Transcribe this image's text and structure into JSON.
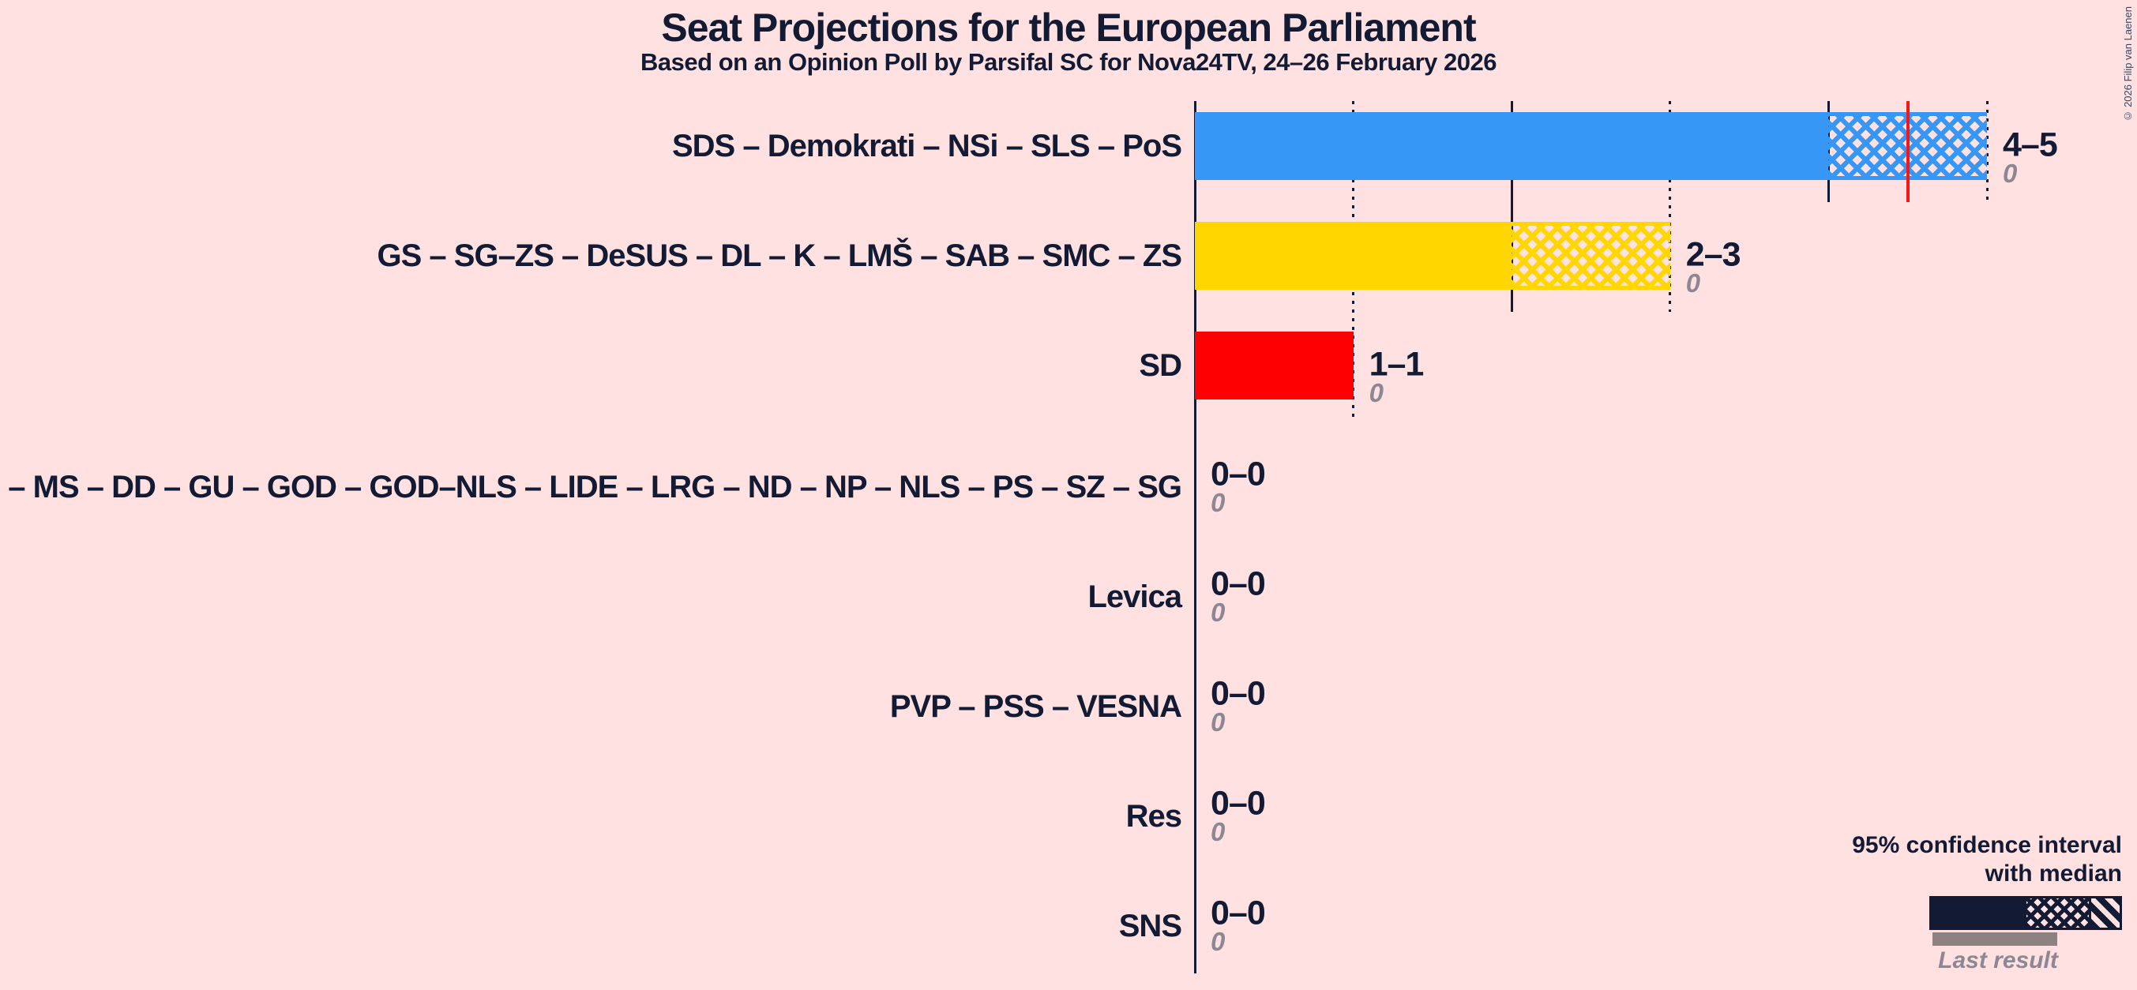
{
  "chart_data": {
    "type": "bar",
    "title": "Seat Projections for the European Parliament",
    "subtitle": "Based on an Opinion Poll by Parsifal SC for Nova24TV, 24–26 February 2026",
    "unit": "seats",
    "x_axis": {
      "min": 0,
      "max": 5,
      "solid_gridlines": [
        2,
        4
      ],
      "dotted_gridlines": [
        1,
        3,
        5
      ]
    },
    "axis_color": "#121b33",
    "parties": [
      {
        "name": "SDS – Demokrati – NSi – SLS – PoS",
        "ci_label": "4–5",
        "low": 4,
        "high": 5,
        "median": 4.5,
        "last_result": "0",
        "color": "#3797f7"
      },
      {
        "name": "GS – SG–ZS – DeSUS – DL – K – LMŠ – SAB – SMC – ZS",
        "ci_label": "2–3",
        "low": 2,
        "high": 3,
        "median": null,
        "last_result": "0",
        "color": "#ffd600"
      },
      {
        "name": "SD",
        "ci_label": "1–1",
        "low": 1,
        "high": 1,
        "median": null,
        "last_result": "0",
        "color": "#fe0000"
      },
      {
        "name": "Fokus – MS – DD – GU – GOD – GOD–NLS – LIDE – LRG – ND – NP – NLS – PS – SZ – SG",
        "ci_label": "0–0",
        "low": 0,
        "high": 0,
        "median": null,
        "last_result": "0",
        "color": null
      },
      {
        "name": "Levica",
        "ci_label": "0–0",
        "low": 0,
        "high": 0,
        "median": null,
        "last_result": "0",
        "color": null
      },
      {
        "name": "PVP – PSS – VESNA",
        "ci_label": "0–0",
        "low": 0,
        "high": 0,
        "median": null,
        "last_result": "0",
        "color": null
      },
      {
        "name": "Res",
        "ci_label": "0–0",
        "low": 0,
        "high": 0,
        "median": null,
        "last_result": "0",
        "color": null
      },
      {
        "name": "SNS",
        "ci_label": "0–0",
        "low": 0,
        "high": 0,
        "median": null,
        "last_result": "0",
        "color": null
      }
    ]
  },
  "legend": {
    "line1": "95% confidence interval",
    "line2": "with median",
    "last_result_label": "Last result"
  },
  "copyright": "© 2026 Filip van Laenen",
  "colors": {
    "background": "#ffe1e1",
    "text": "#121b33",
    "gray_text": "#8d8793",
    "median_line": "#f81717",
    "last_result_bar": "#8d8181"
  }
}
